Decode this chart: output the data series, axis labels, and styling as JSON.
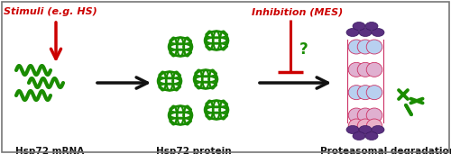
{
  "bg_color": "#ffffff",
  "green": "#1a8c00",
  "red": "#cc0000",
  "black": "#111111",
  "purple_dark": "#4a2870",
  "purple_mid": "#7a5a9a",
  "blue_light": "#a8c0e8",
  "pink_light": "#e8a8c8",
  "label_hsp72_mrna": "Hsp72 mRNA",
  "label_hsp72_protein": "Hsp72 protein",
  "label_proteasomal": "Proteasomal degradation",
  "label_stimuli": "Stimuli (e.g. HS)",
  "label_inhibition": "Inhibition (MES)",
  "label_question": "?",
  "figsize": [
    5.0,
    1.71
  ],
  "dpi": 100
}
